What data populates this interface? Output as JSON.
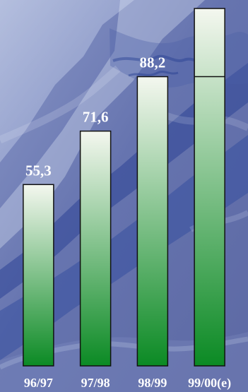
{
  "chart_data": {
    "type": "bar",
    "categories": [
      "96/97",
      "97/98",
      "98/99",
      "99/00(e)"
    ],
    "values": [
      55.3,
      71.6,
      88.2,
      109
    ],
    "data_labels": [
      "55,3",
      "71,6",
      "88,2",
      ""
    ],
    "estimate_split": {
      "category": "99/00(e)",
      "base": 88.2
    },
    "ylim": [
      0,
      109
    ],
    "grid": false,
    "legend": "none",
    "colors": {
      "bar_top": "#f4f7ef",
      "bar_bottom": "#0b8a24",
      "bar_outline": "#111111",
      "background_main": "#6b78b0",
      "background_dark": "#2f4696",
      "background_light": "#d8e1f2"
    }
  }
}
